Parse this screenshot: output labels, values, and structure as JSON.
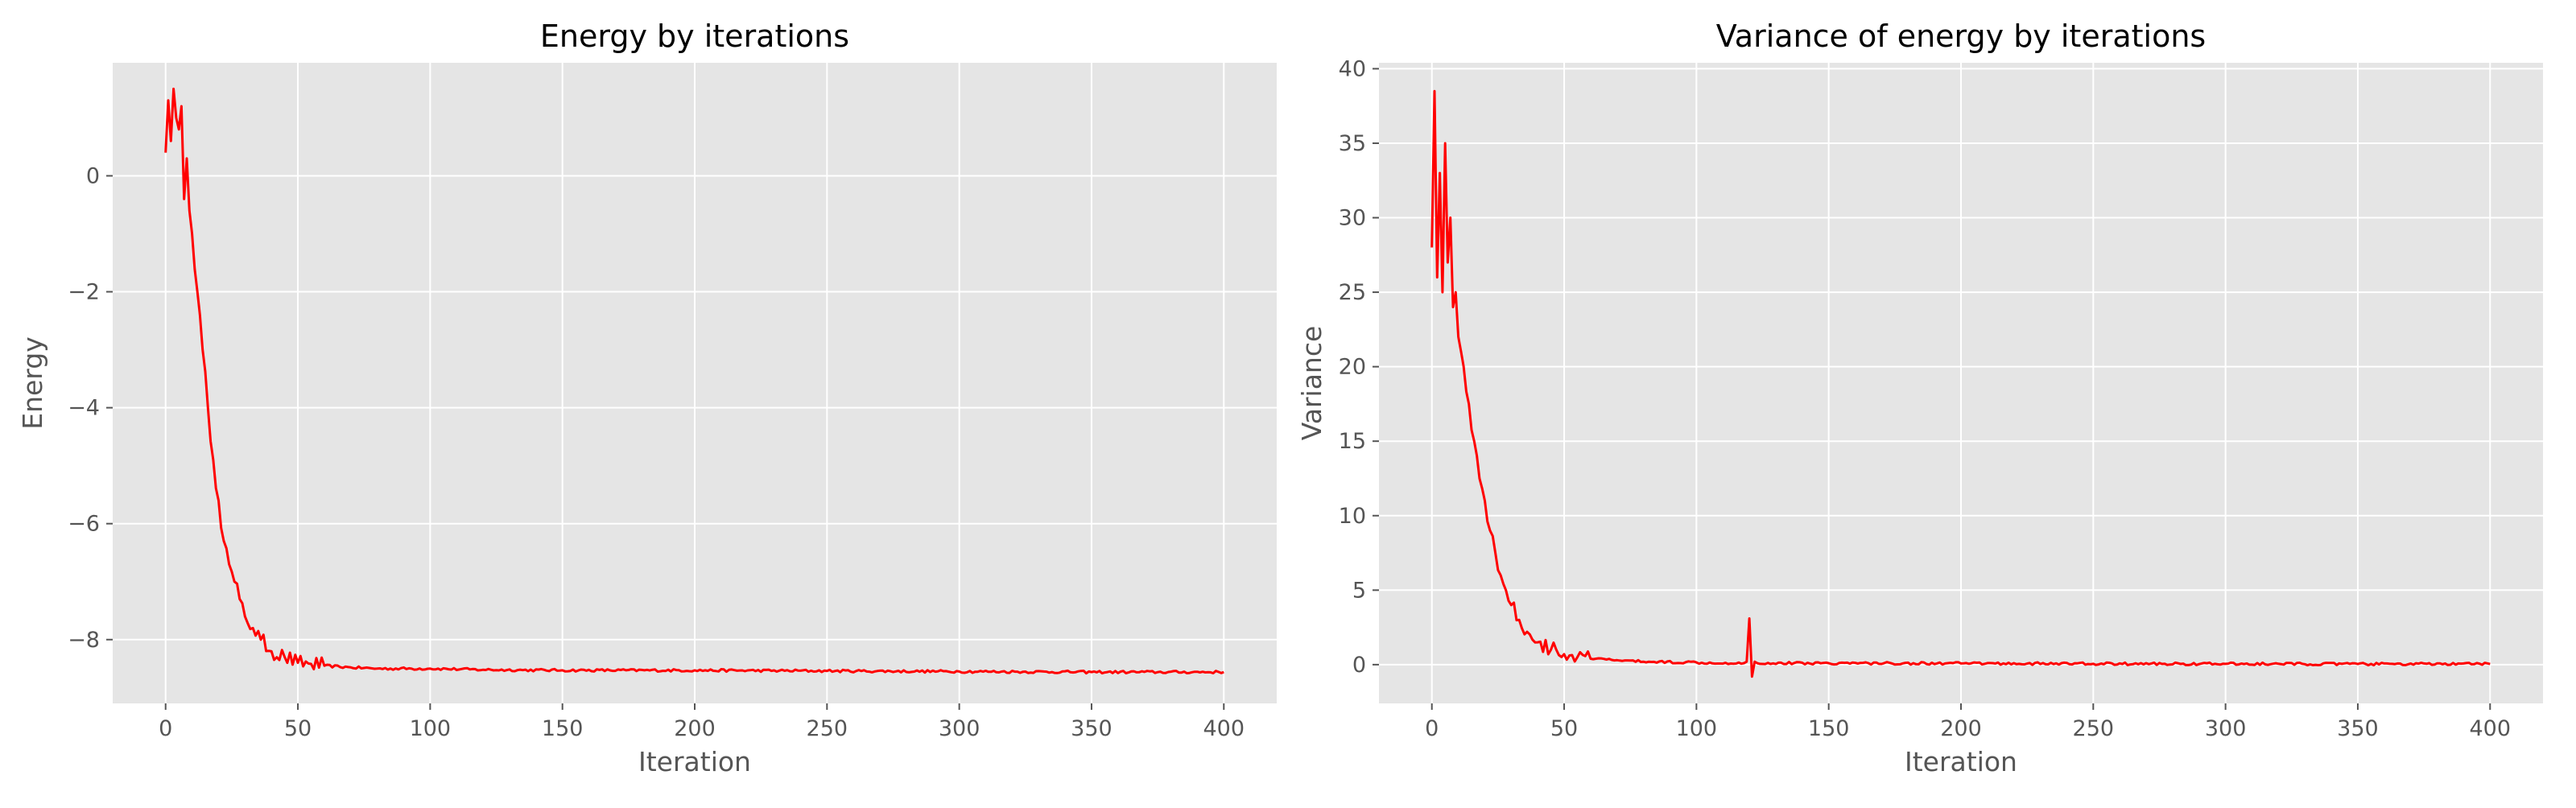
{
  "chart_data": [
    {
      "type": "line",
      "title": "Energy by iterations",
      "xlabel": "Iteration",
      "ylabel": "Energy",
      "xlim": [
        -20,
        420
      ],
      "ylim": [
        -9.1,
        1.95
      ],
      "xticks": [
        0,
        50,
        100,
        150,
        200,
        250,
        300,
        350,
        400
      ],
      "xtick_labels": [
        "0",
        "50",
        "100",
        "150",
        "200",
        "250",
        "300",
        "350",
        "400"
      ],
      "yticks": [
        0,
        -2,
        -4,
        -6,
        -8
      ],
      "ytick_labels": [
        "0",
        "−2",
        "−4",
        "−6",
        "−8"
      ],
      "grid": true,
      "series": [
        {
          "color": "#ff0000",
          "x": [
            0,
            1,
            2,
            3,
            4,
            5,
            6,
            7,
            8,
            9,
            10,
            12,
            14,
            16,
            18,
            20,
            22,
            24,
            26,
            28,
            30,
            33,
            36,
            40,
            45,
            50,
            55,
            60,
            70,
            80,
            100,
            120,
            150,
            200,
            250,
            300,
            350,
            400
          ],
          "y": [
            0.4,
            1.3,
            0.6,
            1.5,
            1.0,
            0.8,
            1.2,
            -0.4,
            0.3,
            -0.6,
            -1.0,
            -2.0,
            -3.0,
            -4.0,
            -4.9,
            -5.6,
            -6.3,
            -6.7,
            -7.0,
            -7.3,
            -7.6,
            -7.8,
            -8.0,
            -8.2,
            -8.3,
            -8.4,
            -8.42,
            -8.45,
            -8.48,
            -8.5,
            -8.5,
            -8.52,
            -8.53,
            -8.53,
            -8.54,
            -8.55,
            -8.56,
            -8.56
          ]
        }
      ]
    },
    {
      "type": "line",
      "title": "Variance of energy by iterations",
      "xlabel": "Iteration",
      "ylabel": "Variance",
      "xlim": [
        -20,
        420
      ],
      "ylim": [
        -2.6,
        40.4
      ],
      "xticks": [
        0,
        50,
        100,
        150,
        200,
        250,
        300,
        350,
        400
      ],
      "xtick_labels": [
        "0",
        "50",
        "100",
        "150",
        "200",
        "250",
        "300",
        "350",
        "400"
      ],
      "yticks": [
        0,
        5,
        10,
        15,
        20,
        25,
        30,
        35,
        40
      ],
      "ytick_labels": [
        "0",
        "5",
        "10",
        "15",
        "20",
        "25",
        "30",
        "35",
        "40"
      ],
      "grid": true,
      "series": [
        {
          "color": "#ff0000",
          "x": [
            0,
            1,
            2,
            3,
            4,
            5,
            6,
            7,
            8,
            9,
            10,
            12,
            14,
            16,
            18,
            20,
            22,
            24,
            26,
            28,
            30,
            33,
            36,
            40,
            45,
            50,
            55,
            60,
            70,
            80,
            100,
            118,
            119,
            120,
            121,
            122,
            123,
            150,
            200,
            250,
            300,
            350,
            400
          ],
          "y": [
            28,
            38.5,
            26,
            33,
            25,
            35,
            27,
            30,
            24,
            25,
            22,
            20,
            17.5,
            15,
            12.5,
            11,
            9,
            7.5,
            6,
            5,
            4,
            3,
            2.2,
            1.5,
            1.0,
            0.7,
            0.5,
            0.4,
            0.3,
            0.2,
            0.15,
            0.1,
            0.2,
            3.1,
            -0.8,
            0.2,
            0.1,
            0.1,
            0.08,
            0.06,
            0.05,
            0.04,
            0.04
          ]
        }
      ]
    }
  ]
}
